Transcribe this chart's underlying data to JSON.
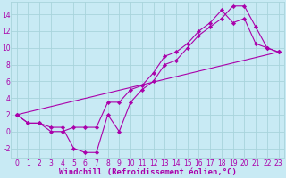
{
  "bg_color": "#c8eaf4",
  "grid_color": "#a8d4dc",
  "line_color": "#aa00aa",
  "xlim": [
    -0.5,
    23.5
  ],
  "ylim": [
    -3.2,
    15.5
  ],
  "xticks": [
    0,
    1,
    2,
    3,
    4,
    5,
    6,
    7,
    8,
    9,
    10,
    11,
    12,
    13,
    14,
    15,
    16,
    17,
    18,
    19,
    20,
    21,
    22,
    23
  ],
  "yticks": [
    -2,
    0,
    2,
    4,
    6,
    8,
    10,
    12,
    14
  ],
  "curve1_x": [
    0,
    1,
    2,
    3,
    4,
    5,
    6,
    7,
    8,
    9,
    10,
    11,
    12,
    13,
    14,
    15,
    16,
    17,
    18,
    19,
    20,
    21,
    22,
    23
  ],
  "curve1_y": [
    2.0,
    1.0,
    1.0,
    0.5,
    0.5,
    -2.0,
    -2.5,
    -2.5,
    2.0,
    0.0,
    3.5,
    5.0,
    6.0,
    8.0,
    8.5,
    10.0,
    11.5,
    12.5,
    13.5,
    15.0,
    15.0,
    12.5,
    10.0,
    9.5
  ],
  "curve2_x": [
    0,
    1,
    2,
    3,
    4,
    5,
    6,
    7,
    8,
    9,
    10,
    11,
    12,
    13,
    14,
    15,
    16,
    17,
    18,
    19,
    20,
    21,
    22,
    23
  ],
  "curve2_y": [
    2.0,
    1.0,
    1.0,
    0.0,
    0.0,
    0.5,
    0.5,
    0.5,
    3.5,
    3.5,
    5.0,
    5.5,
    7.0,
    9.0,
    9.5,
    10.5,
    12.0,
    13.0,
    14.5,
    13.0,
    13.5,
    10.5,
    10.0,
    9.5
  ],
  "curve3_x": [
    0,
    23
  ],
  "curve3_y": [
    2.0,
    9.5
  ],
  "xlabel": "Windchill (Refroidissement éolien,°C)",
  "tick_fontsize": 5.5,
  "label_fontsize": 6.5
}
